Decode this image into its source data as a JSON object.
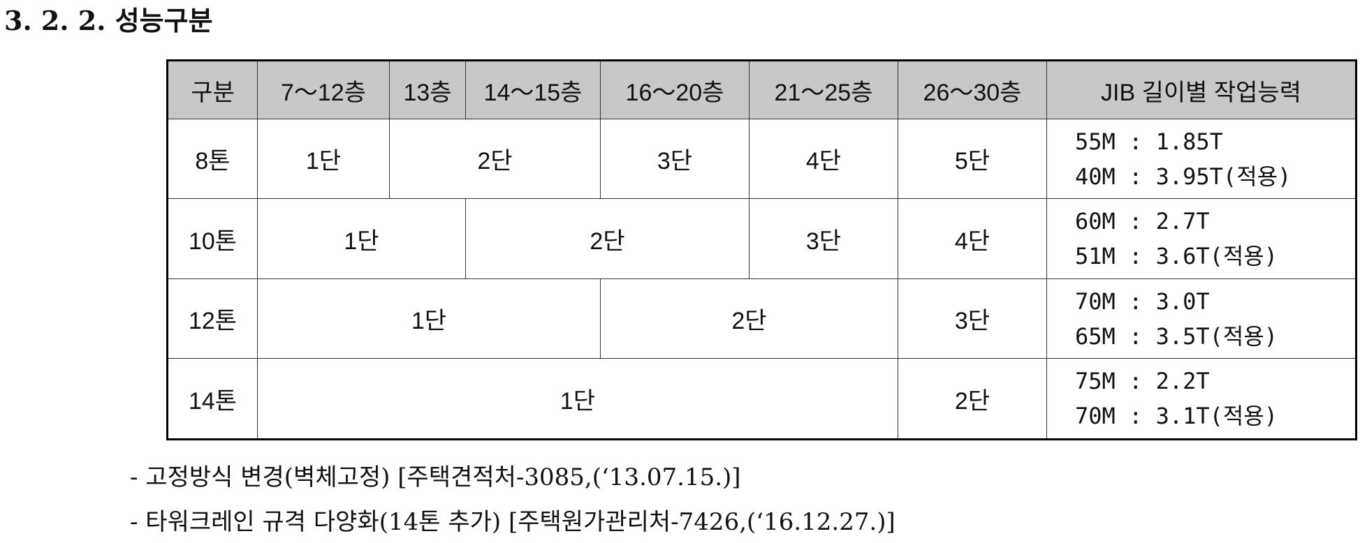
{
  "heading": "3. 2. 2. 성능구분",
  "table": {
    "headers": [
      "구분",
      "7～12층",
      "13층",
      "14～15층",
      "16～20층",
      "21～25층",
      "26～30층",
      "JIB 길이별 작업능력"
    ],
    "rows": [
      {
        "label": "8톤",
        "cells": [
          "1단",
          "2단",
          "3단",
          "4단",
          "5단"
        ],
        "jib": [
          "55M : 1.85T",
          "40M : 3.95T(적용)"
        ]
      },
      {
        "label": "10톤",
        "cells": [
          "1단",
          "2단",
          "3단",
          "4단"
        ],
        "jib": [
          "60M : 2.7T",
          "51M : 3.6T(적용)"
        ]
      },
      {
        "label": "12톤",
        "cells": [
          "1단",
          "2단",
          "3단"
        ],
        "jib": [
          "70M : 3.0T",
          "65M : 3.5T(적용)"
        ]
      },
      {
        "label": "14톤",
        "cells": [
          "1단",
          "2단"
        ],
        "jib": [
          "75M : 2.2T",
          "70M : 3.1T(적용)"
        ]
      }
    ]
  },
  "notes": [
    "- 고정방식 변경(벽체고정) [주택견적처-3085,(‘13.07.15.)]",
    "- 타워크레인 규격 다양화(14톤 추가) [주택원가관리처-7426,(‘16.12.27.)]"
  ]
}
